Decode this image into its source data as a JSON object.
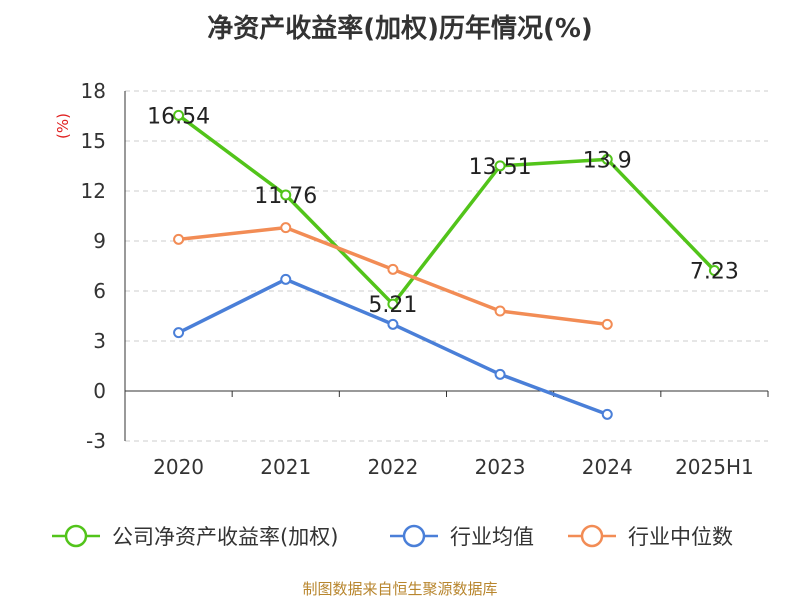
{
  "title": "净资产收益率(加权)历年情况(%)",
  "source_text": "制图数据来自恒生聚源数据库",
  "chart_data": {
    "type": "line",
    "title": "净资产收益率(加权)历年情况(%)",
    "ylabel": "(%)",
    "xlabel": "",
    "categories": [
      "2020",
      "2021",
      "2022",
      "2023",
      "2024",
      "2025H1"
    ],
    "ylim": [
      -3,
      18
    ],
    "yticks": [
      -3,
      0,
      3,
      6,
      9,
      12,
      15,
      18
    ],
    "grid": true,
    "legend_position": "bottom",
    "series": [
      {
        "name": "公司净资产收益率(加权)",
        "color": "#52c41a",
        "show_labels": true,
        "values": [
          16.54,
          11.76,
          5.21,
          13.51,
          13.9,
          7.23
        ]
      },
      {
        "name": "行业均值",
        "color": "#4a7fd8",
        "show_labels": false,
        "values": [
          3.5,
          6.7,
          4.0,
          1.0,
          -1.4,
          null
        ]
      },
      {
        "name": "行业中位数",
        "color": "#f28c55",
        "show_labels": false,
        "values": [
          9.1,
          9.8,
          7.3,
          4.8,
          4.0,
          null
        ]
      }
    ]
  }
}
